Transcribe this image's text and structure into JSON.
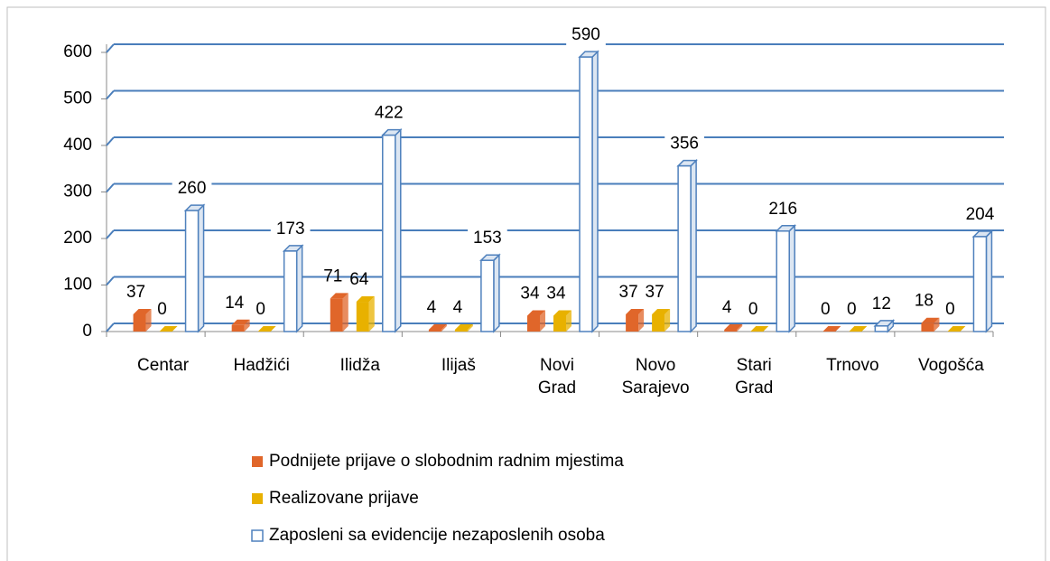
{
  "chart_data": {
    "type": "bar",
    "categories": [
      "Centar",
      "Hadžići",
      "Ilidža",
      "Ilijaš",
      "Novi Grad",
      "Novo Sarajevo",
      "Stari Grad",
      "Trnovo",
      "Vogošća"
    ],
    "series": [
      {
        "name": "Podnijete prijave o slobodnim radnim mjestima",
        "color": "#e0662a",
        "values": [
          37,
          14,
          71,
          4,
          34,
          37,
          4,
          0,
          18
        ]
      },
      {
        "name": "Realizovane prijave",
        "color": "#e8b100",
        "values": [
          0,
          0,
          64,
          4,
          34,
          37,
          0,
          0,
          0
        ]
      },
      {
        "name": "Zaposleni sa evidencije nezaposlenih osoba",
        "color": "#ffffff",
        "values": [
          260,
          173,
          422,
          153,
          590,
          356,
          216,
          12,
          204
        ]
      }
    ],
    "ylim": [
      0,
      600
    ],
    "yticks": [
      0,
      100,
      200,
      300,
      400,
      500,
      600
    ],
    "grid": true,
    "legend": "bottom"
  }
}
